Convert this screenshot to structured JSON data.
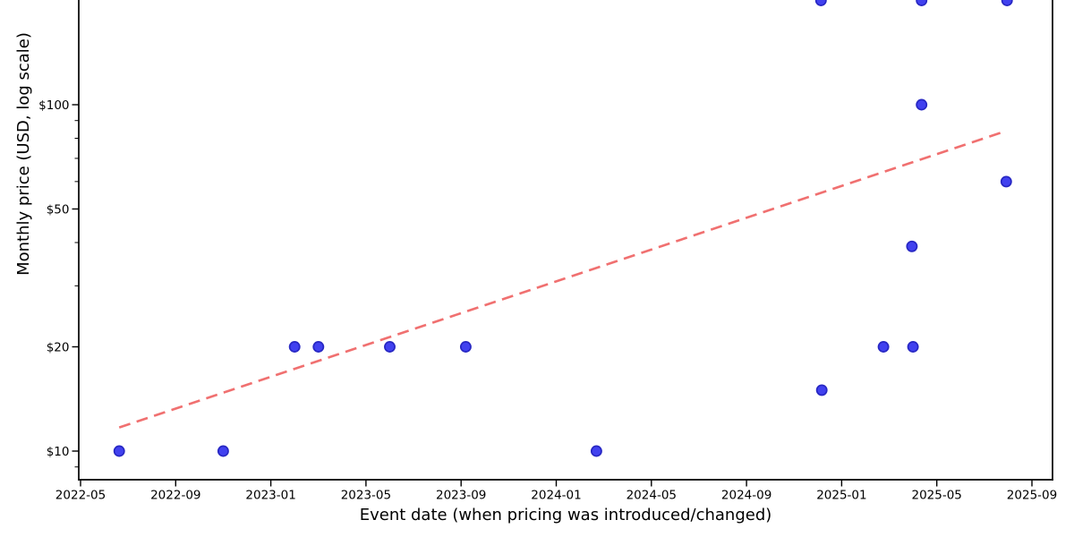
{
  "chart_data": {
    "type": "scatter",
    "title": "",
    "xlabel": "Event date (when pricing was introduced/changed)",
    "ylabel": "Monthly price (USD, log scale)",
    "y_scale": "log",
    "grid": false,
    "legend": "none",
    "x_ticks": [
      "2022-05",
      "2022-09",
      "2023-01",
      "2023-05",
      "2023-09",
      "2024-01",
      "2024-05",
      "2024-09",
      "2025-01",
      "2025-05",
      "2025-09"
    ],
    "y_ticks": [
      {
        "label": "$100",
        "value": 100
      },
      {
        "label": "$50",
        "value": 50
      },
      {
        "label": "$20",
        "value": 20
      },
      {
        "label": "$10",
        "value": 10
      }
    ],
    "y_minor_ticks": [
      90,
      80,
      70,
      60,
      40,
      30,
      9
    ],
    "xlim": [
      "2022-04-29",
      "2025-09-27"
    ],
    "ylim": [
      8.3,
      200
    ],
    "points": [
      {
        "date": "2022-06-20",
        "price": 10
      },
      {
        "date": "2022-11-01",
        "price": 10
      },
      {
        "date": "2023-02-01",
        "price": 20
      },
      {
        "date": "2023-03-01",
        "price": 20
      },
      {
        "date": "2023-06-01",
        "price": 20
      },
      {
        "date": "2023-09-07",
        "price": 20
      },
      {
        "date": "2024-02-22",
        "price": 10
      },
      {
        "date": "2024-12-05",
        "price": 200
      },
      {
        "date": "2024-12-06",
        "price": 15
      },
      {
        "date": "2025-02-24",
        "price": 20
      },
      {
        "date": "2025-03-30",
        "price": 39
      },
      {
        "date": "2025-04-01",
        "price": 20
      },
      {
        "date": "2025-04-12",
        "price": 100
      },
      {
        "date": "2025-04-12",
        "price": 200
      },
      {
        "date": "2025-07-29",
        "price": 60
      },
      {
        "date": "2025-07-30",
        "price": 200
      }
    ],
    "trend_line": {
      "style": "dashed",
      "color": "#f07070",
      "start": {
        "date": "2022-06-20",
        "price": 11.7
      },
      "end": {
        "date": "2025-07-29",
        "price": 84
      }
    },
    "marker": {
      "shape": "circle",
      "fill": "#4141ef",
      "edge": "#2727c3"
    },
    "axis_color": "#000000",
    "background": "#ffffff"
  }
}
